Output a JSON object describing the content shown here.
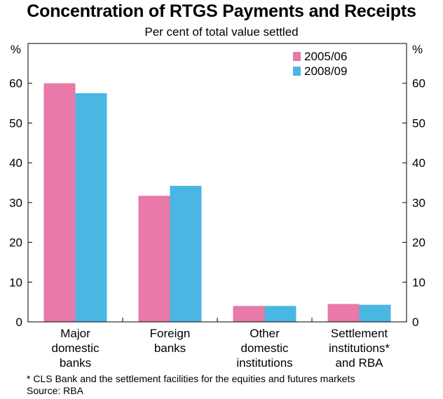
{
  "title": "Concentration of RTGS Payments and Receipts",
  "subtitle": "Per cent of total value settled",
  "footnote": "* CLS Bank and the settlement facilities for the equities and futures markets",
  "source": "Source: RBA",
  "colors": {
    "series_2005": "#e879a8",
    "series_2008": "#4ab6e4"
  },
  "chart_data": {
    "type": "bar",
    "categories": [
      [
        "Major",
        "domestic",
        "banks"
      ],
      [
        "Foreign",
        "banks"
      ],
      [
        "Other",
        "domestic",
        "institutions"
      ],
      [
        "Settlement",
        "institutions*",
        "and RBA"
      ]
    ],
    "series": [
      {
        "name": "2005/06",
        "values": [
          60.0,
          31.7,
          4.0,
          4.5
        ]
      },
      {
        "name": "2008/09",
        "values": [
          57.5,
          34.2,
          4.0,
          4.3
        ]
      }
    ],
    "ylabel_left": "%",
    "ylabel_right": "%",
    "ylim": [
      0,
      70
    ],
    "yticks": [
      0,
      10,
      20,
      30,
      40,
      50,
      60
    ],
    "grid": false,
    "legend_position": "top-right"
  }
}
